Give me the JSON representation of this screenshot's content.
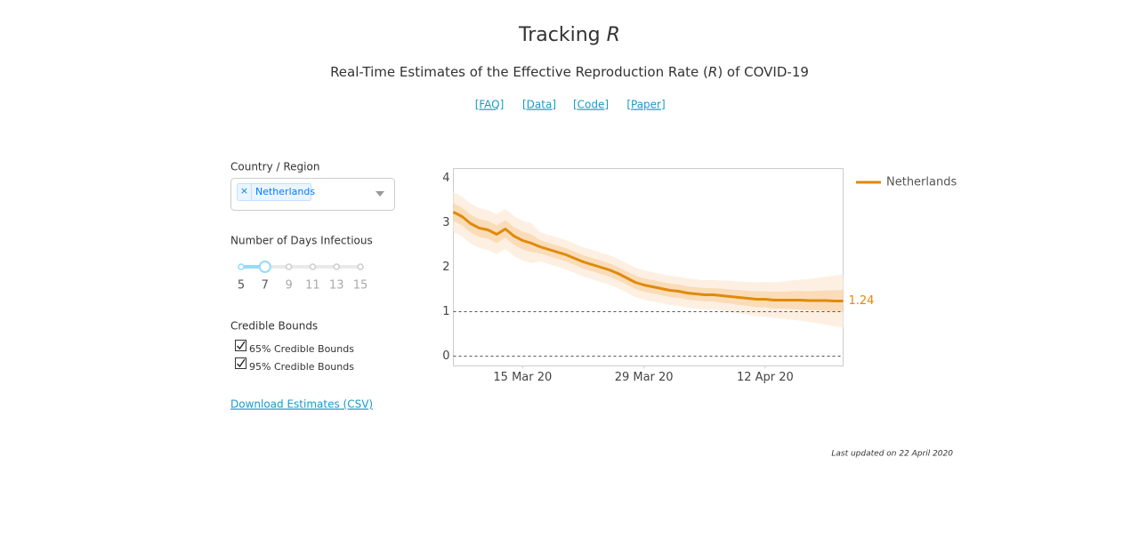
{
  "header": {
    "title": "Tracking ",
    "title_italic": "R",
    "subtitle_parts": [
      "Real-Time Estimates of the Effective Reproduction Rate (",
      "R",
      ") of COVID-19"
    ]
  },
  "links": [
    "[FAQ]",
    "[Data]",
    "[Code]",
    "[Paper]"
  ],
  "controls": {
    "region_label": "Country / Region",
    "region_chip_remove": "×",
    "region_selected": "Netherlands",
    "days_label": "Number of Days Infectious",
    "days_options": [
      5,
      7,
      9,
      11,
      13,
      15
    ],
    "days_selected": 7,
    "bounds_label": "Credible Bounds",
    "bounds_options": [
      {
        "label": "65% Credible Bounds",
        "checked": true
      },
      {
        "label": "95% Credible Bounds",
        "checked": true
      }
    ],
    "download": "Download Estimates (CSV)"
  },
  "footer": "Last updated on 22 April 2020",
  "chart_data": {
    "type": "line",
    "x": [
      "2020-03-07",
      "2020-03-08",
      "2020-03-09",
      "2020-03-10",
      "2020-03-11",
      "2020-03-12",
      "2020-03-13",
      "2020-03-14",
      "2020-03-15",
      "2020-03-16",
      "2020-03-17",
      "2020-03-18",
      "2020-03-19",
      "2020-03-20",
      "2020-03-21",
      "2020-03-22",
      "2020-03-23",
      "2020-03-24",
      "2020-03-25",
      "2020-03-26",
      "2020-03-27",
      "2020-03-28",
      "2020-03-29",
      "2020-03-30",
      "2020-03-31",
      "2020-04-01",
      "2020-04-02",
      "2020-04-03",
      "2020-04-04",
      "2020-04-05",
      "2020-04-06",
      "2020-04-07",
      "2020-04-08",
      "2020-04-09",
      "2020-04-10",
      "2020-04-11",
      "2020-04-12",
      "2020-04-13",
      "2020-04-14",
      "2020-04-15",
      "2020-04-16",
      "2020-04-17",
      "2020-04-18",
      "2020-04-19",
      "2020-04-20",
      "2020-04-21"
    ],
    "series": [
      {
        "name": "Netherlands",
        "color": "#e08a0b",
        "values": [
          3.24,
          3.14,
          2.98,
          2.88,
          2.84,
          2.74,
          2.86,
          2.7,
          2.6,
          2.54,
          2.46,
          2.4,
          2.34,
          2.28,
          2.2,
          2.12,
          2.06,
          2.0,
          1.94,
          1.86,
          1.76,
          1.66,
          1.6,
          1.56,
          1.52,
          1.48,
          1.46,
          1.42,
          1.4,
          1.38,
          1.38,
          1.36,
          1.34,
          1.32,
          1.3,
          1.28,
          1.28,
          1.26,
          1.26,
          1.26,
          1.26,
          1.25,
          1.25,
          1.25,
          1.24,
          1.24
        ]
      }
    ],
    "bands": [
      {
        "color": "#fadcb8",
        "lower": [
          3.04,
          2.94,
          2.78,
          2.68,
          2.64,
          2.54,
          2.66,
          2.5,
          2.4,
          2.34,
          2.31,
          2.25,
          2.19,
          2.13,
          2.05,
          1.97,
          1.91,
          1.85,
          1.79,
          1.71,
          1.61,
          1.51,
          1.45,
          1.41,
          1.37,
          1.33,
          1.31,
          1.27,
          1.25,
          1.23,
          1.23,
          1.2,
          1.18,
          1.15,
          1.13,
          1.1,
          1.1,
          1.07,
          1.07,
          1.06,
          1.05,
          1.04,
          1.03,
          1.02,
          1.0,
          0.99
        ],
        "upper": [
          3.44,
          3.34,
          3.18,
          3.08,
          3.04,
          2.94,
          3.06,
          2.9,
          2.8,
          2.74,
          2.61,
          2.55,
          2.49,
          2.43,
          2.35,
          2.27,
          2.21,
          2.15,
          2.09,
          2.01,
          1.91,
          1.81,
          1.75,
          1.71,
          1.67,
          1.63,
          1.61,
          1.57,
          1.55,
          1.53,
          1.53,
          1.52,
          1.5,
          1.49,
          1.47,
          1.46,
          1.46,
          1.45,
          1.45,
          1.46,
          1.47,
          1.46,
          1.47,
          1.48,
          1.48,
          1.49
        ]
      },
      {
        "color": "#fdf0e2",
        "lower": [
          2.79,
          2.69,
          2.53,
          2.43,
          2.39,
          2.29,
          2.41,
          2.25,
          2.15,
          2.09,
          2.13,
          2.07,
          2.01,
          1.95,
          1.87,
          1.79,
          1.73,
          1.67,
          1.61,
          1.53,
          1.43,
          1.33,
          1.27,
          1.23,
          1.19,
          1.15,
          1.13,
          1.09,
          1.07,
          1.05,
          1.05,
          1.02,
          0.99,
          0.96,
          0.93,
          0.9,
          0.89,
          0.86,
          0.84,
          0.82,
          0.8,
          0.77,
          0.74,
          0.71,
          0.67,
          0.64
        ],
        "upper": [
          3.69,
          3.59,
          3.43,
          3.33,
          3.29,
          3.19,
          3.31,
          3.15,
          3.05,
          2.99,
          2.79,
          2.73,
          2.67,
          2.61,
          2.53,
          2.45,
          2.39,
          2.33,
          2.27,
          2.19,
          2.09,
          1.99,
          1.93,
          1.89,
          1.85,
          1.81,
          1.79,
          1.75,
          1.73,
          1.71,
          1.71,
          1.7,
          1.69,
          1.68,
          1.67,
          1.66,
          1.67,
          1.66,
          1.68,
          1.7,
          1.72,
          1.73,
          1.76,
          1.79,
          1.81,
          1.84
        ]
      }
    ],
    "xlim": [
      "2020-03-07",
      "2020-04-21"
    ],
    "xticks": [
      {
        "value": "2020-03-15",
        "label": "15 Mar 20"
      },
      {
        "value": "2020-03-29",
        "label": "29 Mar 20"
      },
      {
        "value": "2020-04-12",
        "label": "12 Apr 20"
      }
    ],
    "ylim": [
      -0.22,
      4.22
    ],
    "yticks": [
      0,
      1,
      2,
      3,
      4
    ],
    "reference_lines": [
      0,
      1
    ],
    "legend": "right"
  }
}
